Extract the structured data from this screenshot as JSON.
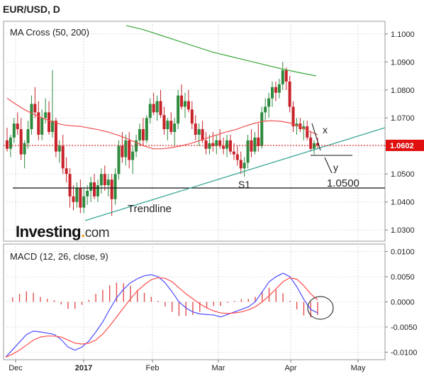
{
  "title": "EUR/USD, D",
  "chart_data": [
    {
      "type": "candlestick",
      "legend": "MA Cross (50, 200)",
      "ylim": [
        1.026,
        1.1045
      ],
      "y_ticks": [
        "1.1000",
        "1.0900",
        "1.0800",
        "1.0700",
        "1.0600",
        "1.0500",
        "1.0400",
        "1.0300"
      ],
      "last_price": "1.0602",
      "x_labels": [
        "Dec",
        "2017",
        "Feb",
        "Mar",
        "Apr",
        "May"
      ],
      "ohlc": [
        [
          1.062,
          1.0665,
          1.058,
          1.059
        ],
        [
          1.059,
          1.064,
          1.056,
          1.063
        ],
        [
          1.063,
          1.07,
          1.061,
          1.068
        ],
        [
          1.068,
          1.072,
          1.064,
          1.066
        ],
        [
          1.066,
          1.07,
          1.055,
          1.057
        ],
        [
          1.057,
          1.062,
          1.052,
          1.061
        ],
        [
          1.061,
          1.069,
          1.059,
          1.066
        ],
        [
          1.066,
          1.078,
          1.064,
          1.075
        ],
        [
          1.075,
          1.081,
          1.07,
          1.072
        ],
        [
          1.072,
          1.076,
          1.062,
          1.064
        ],
        [
          1.064,
          1.073,
          1.062,
          1.07
        ],
        [
          1.07,
          1.077,
          1.068,
          1.072
        ],
        [
          1.072,
          1.076,
          1.064,
          1.065
        ],
        [
          1.065,
          1.087,
          1.063,
          1.069
        ],
        [
          1.069,
          1.07,
          1.056,
          1.058
        ],
        [
          1.058,
          1.062,
          1.054,
          1.06
        ],
        [
          1.06,
          1.064,
          1.05,
          1.052
        ],
        [
          1.052,
          1.056,
          1.047,
          1.05
        ],
        [
          1.05,
          1.052,
          1.038,
          1.042
        ],
        [
          1.042,
          1.046,
          1.037,
          1.04
        ],
        [
          1.04,
          1.047,
          1.038,
          1.045
        ],
        [
          1.045,
          1.048,
          1.036,
          1.038
        ],
        [
          1.038,
          1.045,
          1.036,
          1.042
        ],
        [
          1.042,
          1.046,
          1.039,
          1.044
        ],
        [
          1.044,
          1.049,
          1.04,
          1.047
        ],
        [
          1.047,
          1.05,
          1.041,
          1.042
        ],
        [
          1.042,
          1.048,
          1.04,
          1.046
        ],
        [
          1.046,
          1.052,
          1.043,
          1.05
        ],
        [
          1.05,
          1.053,
          1.044,
          1.046
        ],
        [
          1.046,
          1.05,
          1.042,
          1.048
        ],
        [
          1.048,
          1.05,
          1.035,
          1.041
        ],
        [
          1.041,
          1.052,
          1.039,
          1.05
        ],
        [
          1.05,
          1.062,
          1.048,
          1.06
        ],
        [
          1.06,
          1.065,
          1.054,
          1.056
        ],
        [
          1.056,
          1.064,
          1.053,
          1.062
        ],
        [
          1.062,
          1.065,
          1.052,
          1.055
        ],
        [
          1.055,
          1.06,
          1.05,
          1.058
        ],
        [
          1.058,
          1.064,
          1.056,
          1.062
        ],
        [
          1.062,
          1.068,
          1.06,
          1.066
        ],
        [
          1.066,
          1.07,
          1.06,
          1.062
        ],
        [
          1.062,
          1.071,
          1.061,
          1.07
        ],
        [
          1.07,
          1.077,
          1.068,
          1.075
        ],
        [
          1.075,
          1.079,
          1.071,
          1.072
        ],
        [
          1.072,
          1.078,
          1.069,
          1.076
        ],
        [
          1.076,
          1.08,
          1.07,
          1.071
        ],
        [
          1.071,
          1.074,
          1.064,
          1.066
        ],
        [
          1.066,
          1.07,
          1.062,
          1.069
        ],
        [
          1.069,
          1.072,
          1.064,
          1.065
        ],
        [
          1.065,
          1.07,
          1.06,
          1.068
        ],
        [
          1.068,
          1.08,
          1.066,
          1.078
        ],
        [
          1.078,
          1.082,
          1.073,
          1.074
        ],
        [
          1.074,
          1.079,
          1.07,
          1.076
        ],
        [
          1.076,
          1.08,
          1.072,
          1.073
        ],
        [
          1.073,
          1.076,
          1.066,
          1.068
        ],
        [
          1.068,
          1.071,
          1.062,
          1.064
        ],
        [
          1.064,
          1.068,
          1.06,
          1.066
        ],
        [
          1.066,
          1.069,
          1.061,
          1.062
        ],
        [
          1.062,
          1.065,
          1.057,
          1.059
        ],
        [
          1.059,
          1.064,
          1.057,
          1.061
        ],
        [
          1.061,
          1.065,
          1.058,
          1.06
        ],
        [
          1.06,
          1.064,
          1.057,
          1.062
        ],
        [
          1.062,
          1.066,
          1.059,
          1.06
        ],
        [
          1.06,
          1.063,
          1.057,
          1.059
        ],
        [
          1.059,
          1.064,
          1.056,
          1.062
        ],
        [
          1.062,
          1.064,
          1.057,
          1.058
        ],
        [
          1.058,
          1.061,
          1.055,
          1.057
        ],
        [
          1.057,
          1.06,
          1.053,
          1.055
        ],
        [
          1.055,
          1.058,
          1.05,
          1.052
        ],
        [
          1.052,
          1.056,
          1.049,
          1.054
        ],
        [
          1.054,
          1.064,
          1.052,
          1.062
        ],
        [
          1.062,
          1.066,
          1.056,
          1.058
        ],
        [
          1.058,
          1.065,
          1.057,
          1.063
        ],
        [
          1.063,
          1.068,
          1.058,
          1.06
        ],
        [
          1.06,
          1.074,
          1.059,
          1.072
        ],
        [
          1.072,
          1.077,
          1.069,
          1.074
        ],
        [
          1.074,
          1.079,
          1.07,
          1.077
        ],
        [
          1.077,
          1.083,
          1.074,
          1.081
        ],
        [
          1.081,
          1.083,
          1.076,
          1.079
        ],
        [
          1.079,
          1.084,
          1.077,
          1.082
        ],
        [
          1.082,
          1.09,
          1.08,
          1.087
        ],
        [
          1.087,
          1.088,
          1.08,
          1.083
        ],
        [
          1.083,
          1.085,
          1.072,
          1.074
        ],
        [
          1.074,
          1.076,
          1.065,
          1.067
        ],
        [
          1.067,
          1.07,
          1.064,
          1.068
        ],
        [
          1.068,
          1.07,
          1.065,
          1.066
        ],
        [
          1.066,
          1.069,
          1.062,
          1.067
        ],
        [
          1.067,
          1.069,
          1.062,
          1.063
        ],
        [
          1.063,
          1.065,
          1.058,
          1.059
        ],
        [
          1.059,
          1.062,
          1.057,
          1.061
        ],
        [
          1.061,
          1.063,
          1.059,
          1.0602
        ]
      ],
      "sma50": [
        1.077,
        1.0748,
        1.0728,
        1.0712,
        1.0698,
        1.0686,
        1.0676,
        1.0672,
        1.067,
        1.0664,
        1.0658,
        1.065,
        1.064,
        1.0628,
        1.0614,
        1.06,
        1.059,
        1.059,
        1.0594,
        1.06,
        1.0608,
        1.0618,
        1.063,
        1.064,
        1.065,
        1.0658,
        1.067,
        1.068,
        1.0688,
        1.069,
        1.0688,
        1.0682,
        1.067,
        1.0654,
        1.064
      ],
      "sma200": [
        1.103,
        1.1015,
        1.0995,
        1.0975,
        1.0955,
        1.0935,
        1.092,
        1.0905,
        1.089,
        1.0875,
        1.0862,
        1.085
      ],
      "annotations": {
        "trendline": "Trendline",
        "support": "S1",
        "support_level": 1.045,
        "target": "1.0500",
        "x": "x",
        "y": "y"
      }
    },
    {
      "type": "macd",
      "legend": "MACD (12, 26, close, 9)",
      "ylim": [
        -0.0115,
        0.0115
      ],
      "y_ticks": [
        "0.0100",
        "0.0050",
        "0.0000",
        "-0.0050",
        "-0.0100"
      ],
      "macd": [
        -0.011,
        -0.0095,
        -0.008,
        -0.0065,
        -0.0058,
        -0.006,
        -0.0062,
        -0.0065,
        -0.0075,
        -0.009,
        -0.0096,
        -0.009,
        -0.0078,
        -0.006,
        -0.004,
        -0.0015,
        0.0008,
        0.0025,
        0.0038,
        0.0046,
        0.0052,
        0.0054,
        0.005,
        0.0038,
        0.002,
        0.0,
        -0.0012,
        -0.002,
        -0.0024,
        -0.0025,
        -0.0026,
        -0.003,
        -0.0025,
        -0.002,
        -0.0015,
        -0.001,
        0.0,
        0.002,
        0.004,
        0.005,
        0.0057,
        0.005,
        0.003,
        0.0005,
        -0.0015,
        -0.0022
      ],
      "signal": [
        -0.011,
        -0.0104,
        -0.0096,
        -0.0086,
        -0.0076,
        -0.007,
        -0.0068,
        -0.0068,
        -0.007,
        -0.0076,
        -0.0082,
        -0.0084,
        -0.0082,
        -0.0076,
        -0.0064,
        -0.0048,
        -0.003,
        -0.0012,
        0.0006,
        0.0022,
        0.0034,
        0.0044,
        0.0048,
        0.0047,
        0.004,
        0.0028,
        0.0016,
        0.0006,
        -0.0004,
        -0.0012,
        -0.0018,
        -0.0022,
        -0.0023,
        -0.0022,
        -0.002,
        -0.0016,
        -0.001,
        0.0,
        0.0012,
        0.0026,
        0.004,
        0.0048,
        0.0045,
        0.0032,
        0.0016,
        0.0004
      ],
      "colors": {
        "macd": "#4d4dff",
        "signal": "#ff4d4d",
        "histogram": "#e05050"
      }
    }
  ],
  "brand": {
    "name": "Investing",
    "dot": ".",
    "suffix": "com"
  },
  "colors": {
    "bull": "#2e8b3e",
    "bear": "#c8222a",
    "sma50": "#f05050",
    "sma200": "#3aa83a",
    "trend": "#3aa89a",
    "level": "#111111",
    "last": "#e01010"
  }
}
